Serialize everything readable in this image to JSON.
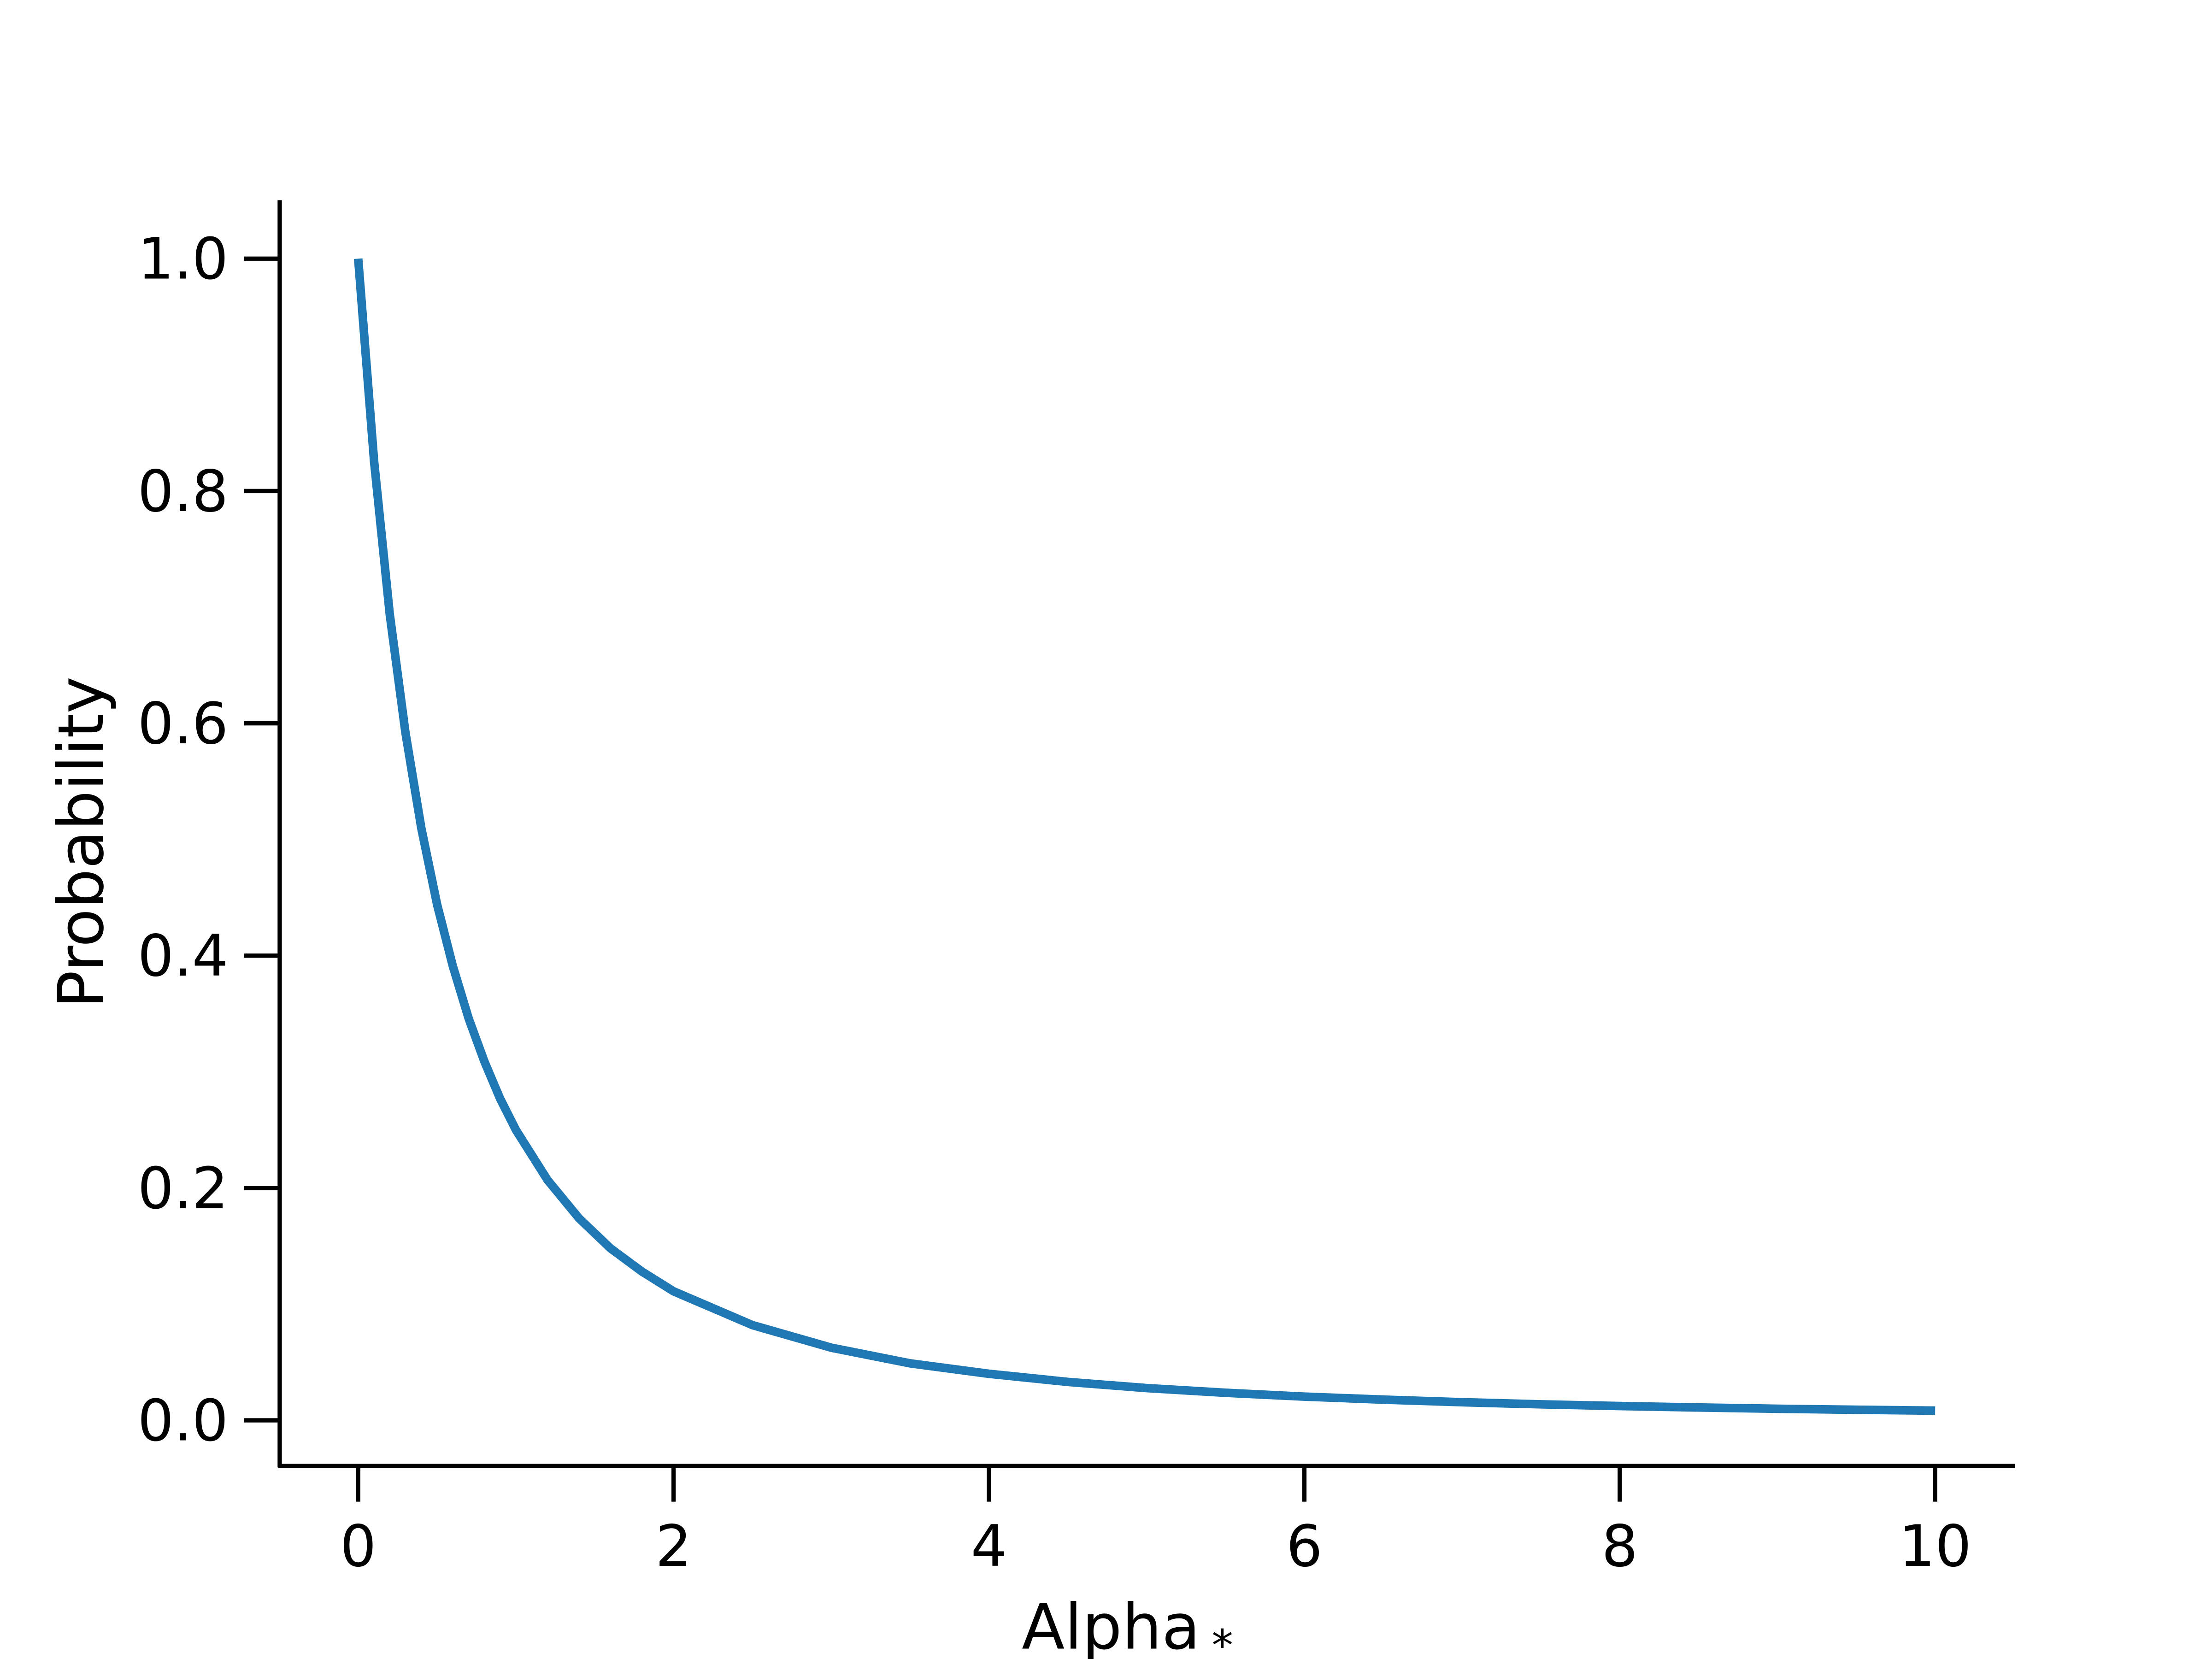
{
  "chart_data": {
    "type": "line",
    "title": "",
    "xlabel": "Alpha",
    "xlabel_subscript": "*",
    "ylabel": "Probability",
    "xlim": [
      -0.5,
      10.5
    ],
    "ylim": [
      -0.04,
      1.05
    ],
    "xticks": [
      0,
      2,
      4,
      6,
      8,
      10
    ],
    "xtick_labels": [
      "0",
      "2",
      "4",
      "6",
      "8",
      "10"
    ],
    "yticks": [
      0.0,
      0.2,
      0.4,
      0.6,
      0.8,
      1.0
    ],
    "ytick_labels": [
      "0.0",
      "0.2",
      "0.4",
      "0.6",
      "0.8",
      "1.0"
    ],
    "grid": false,
    "series": [
      {
        "color": "#1f77b4",
        "x": [
          0,
          0.1,
          0.2,
          0.3,
          0.4,
          0.5,
          0.6,
          0.7,
          0.8,
          0.9,
          1,
          1.2,
          1.4,
          1.6,
          1.8,
          2,
          2.5,
          3,
          3.5,
          4,
          4.5,
          5,
          5.5,
          6,
          6.5,
          7,
          7.5,
          8,
          8.5,
          9,
          9.5,
          10
        ],
        "y": [
          1.0,
          0.826,
          0.694,
          0.592,
          0.51,
          0.444,
          0.391,
          0.346,
          0.309,
          0.277,
          0.25,
          0.207,
          0.174,
          0.148,
          0.128,
          0.111,
          0.082,
          0.0625,
          0.049,
          0.04,
          0.033,
          0.0278,
          0.0237,
          0.0204,
          0.0178,
          0.0156,
          0.0138,
          0.0123,
          0.0111,
          0.01,
          0.0091,
          0.0083
        ]
      }
    ]
  }
}
